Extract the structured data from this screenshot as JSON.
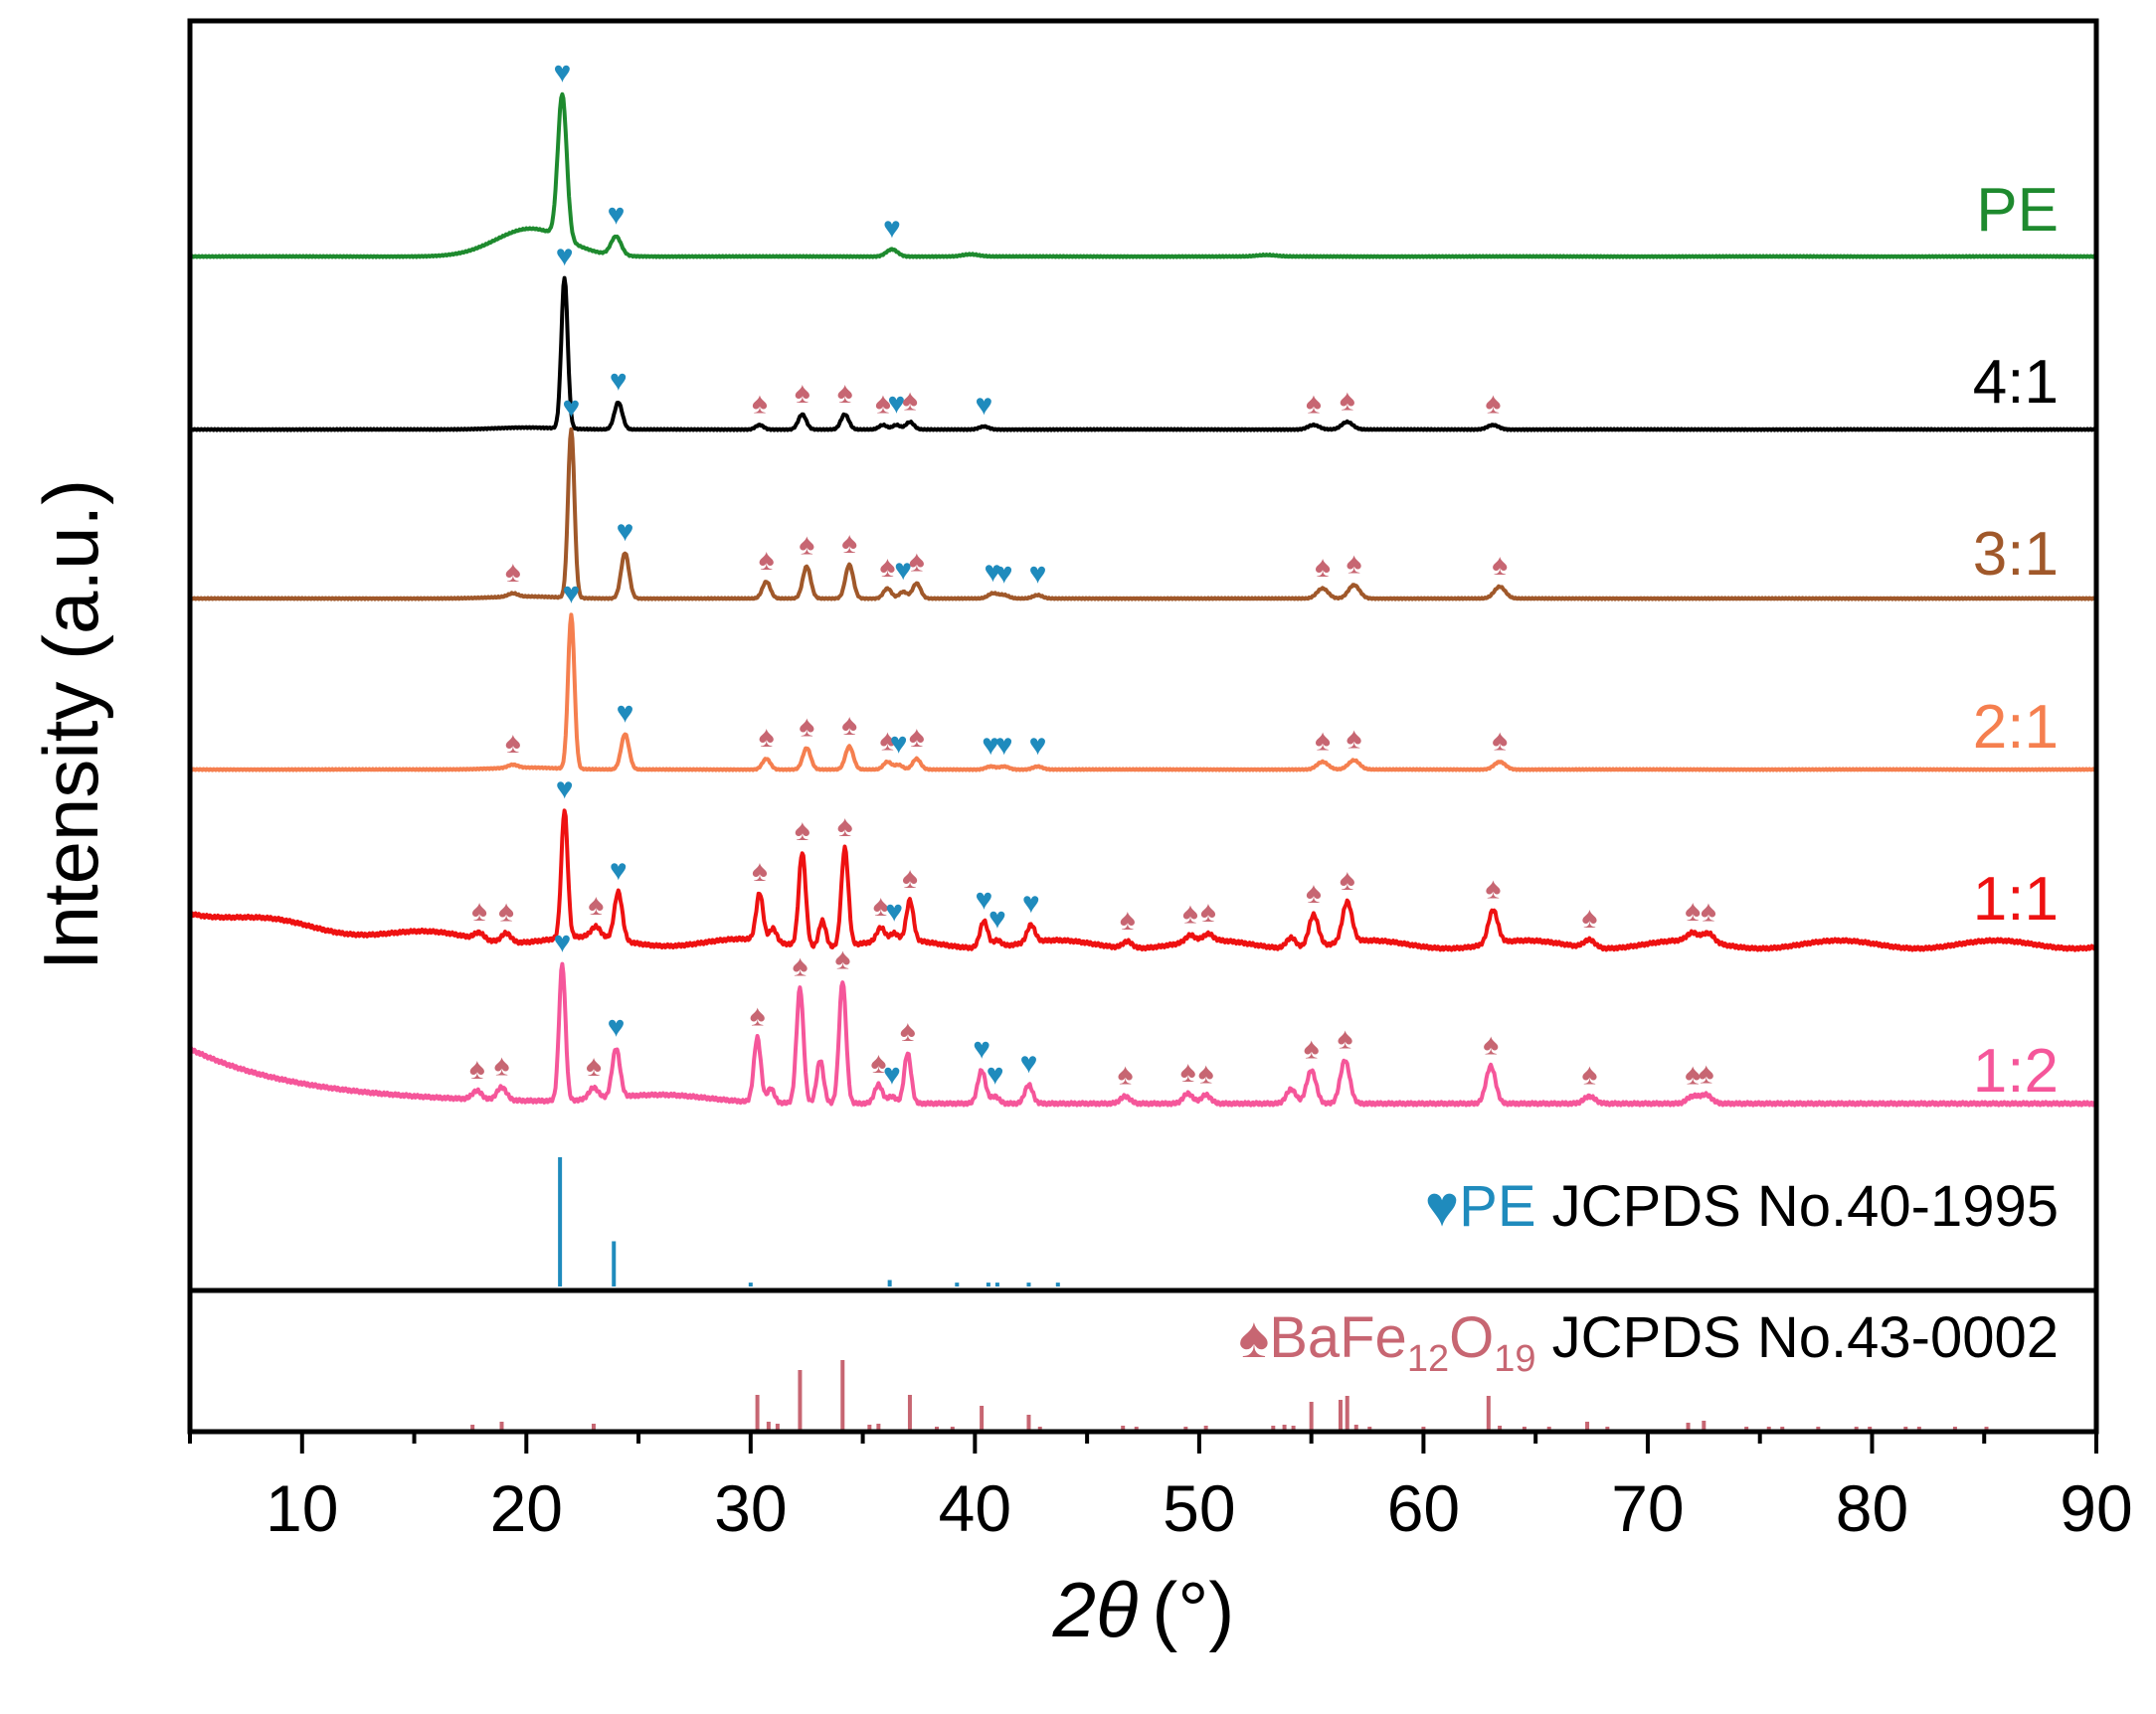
{
  "chart_data": {
    "type": "line",
    "title": "",
    "xlabel_italic": "2θ",
    "xlabel_unit": "(°)",
    "ylabel": "Intensity (a.u.)",
    "xlim": [
      5,
      90
    ],
    "x_ticks": [
      10,
      20,
      30,
      40,
      50,
      60,
      70,
      80,
      90
    ],
    "x_minor_step": 5,
    "grid": false,
    "legend": "inline labels on right side",
    "colors": {
      "PE": "#1e8a2e",
      "4:1": "#000000",
      "3:1": "#a0582a",
      "2:1": "#f57f4f",
      "1:1": "#ee1111",
      "1:2": "#f5569a",
      "pe_ref": "#1f8bbd",
      "bafe_ref": "#c76672"
    },
    "marker_symbols": {
      "PE": "♥",
      "BaFe12O19": "♠"
    },
    "series": [
      {
        "name": "PE",
        "label": "PE",
        "color": "#1e8a2e",
        "peaks": [
          {
            "x": 21.6,
            "h": 1.0,
            "w": 0.28,
            "m": "PE"
          },
          {
            "x": 24.0,
            "h": 0.13,
            "w": 0.32,
            "m": "PE"
          },
          {
            "x": 36.3,
            "h": 0.05,
            "w": 0.35,
            "m": "PE"
          },
          {
            "x": 39.8,
            "h": 0.015,
            "w": 0.5,
            "m": null
          },
          {
            "x": 53.0,
            "h": 0.01,
            "w": 0.6,
            "m": null
          }
        ]
      },
      {
        "name": "4:1",
        "label": "4:1",
        "color": "#000000",
        "peaks": [
          {
            "x": 21.7,
            "h": 1.0,
            "w": 0.2,
            "m": "PE"
          },
          {
            "x": 24.1,
            "h": 0.18,
            "w": 0.25,
            "m": "PE"
          },
          {
            "x": 30.4,
            "h": 0.03,
            "w": 0.25,
            "m": "Ba"
          },
          {
            "x": 32.3,
            "h": 0.1,
            "w": 0.25,
            "m": "Ba"
          },
          {
            "x": 34.2,
            "h": 0.1,
            "w": 0.25,
            "m": "Ba"
          },
          {
            "x": 35.9,
            "h": 0.03,
            "w": 0.25,
            "m": "Ba"
          },
          {
            "x": 36.5,
            "h": 0.03,
            "w": 0.25,
            "m": "PE"
          },
          {
            "x": 37.1,
            "h": 0.05,
            "w": 0.25,
            "m": "Ba"
          },
          {
            "x": 40.4,
            "h": 0.02,
            "w": 0.3,
            "m": "PE"
          },
          {
            "x": 55.1,
            "h": 0.03,
            "w": 0.35,
            "m": "Ba"
          },
          {
            "x": 56.6,
            "h": 0.05,
            "w": 0.35,
            "m": "Ba"
          },
          {
            "x": 63.1,
            "h": 0.03,
            "w": 0.35,
            "m": "Ba"
          }
        ]
      },
      {
        "name": "3:1",
        "label": "3:1",
        "color": "#a0582a",
        "peaks": [
          {
            "x": 19.4,
            "h": 0.02,
            "w": 0.3,
            "m": "Ba"
          },
          {
            "x": 22.0,
            "h": 1.0,
            "w": 0.2,
            "m": "PE"
          },
          {
            "x": 24.4,
            "h": 0.27,
            "w": 0.25,
            "m": "PE"
          },
          {
            "x": 30.7,
            "h": 0.1,
            "w": 0.25,
            "m": "Ba"
          },
          {
            "x": 32.5,
            "h": 0.19,
            "w": 0.25,
            "m": "Ba"
          },
          {
            "x": 34.4,
            "h": 0.2,
            "w": 0.25,
            "m": "Ba"
          },
          {
            "x": 36.1,
            "h": 0.06,
            "w": 0.25,
            "m": "Ba"
          },
          {
            "x": 36.8,
            "h": 0.04,
            "w": 0.25,
            "m": "PE"
          },
          {
            "x": 37.4,
            "h": 0.09,
            "w": 0.25,
            "m": "Ba"
          },
          {
            "x": 40.8,
            "h": 0.03,
            "w": 0.3,
            "m": "PE"
          },
          {
            "x": 41.3,
            "h": 0.02,
            "w": 0.3,
            "m": "PE"
          },
          {
            "x": 42.8,
            "h": 0.02,
            "w": 0.3,
            "m": "PE"
          },
          {
            "x": 55.5,
            "h": 0.06,
            "w": 0.35,
            "m": "Ba"
          },
          {
            "x": 56.9,
            "h": 0.08,
            "w": 0.35,
            "m": "Ba"
          },
          {
            "x": 63.4,
            "h": 0.07,
            "w": 0.35,
            "m": "Ba"
          }
        ]
      },
      {
        "name": "2:1",
        "label": "2:1",
        "color": "#f57f4f",
        "peaks": [
          {
            "x": 19.4,
            "h": 0.02,
            "w": 0.3,
            "m": "Ba"
          },
          {
            "x": 22.0,
            "h": 1.0,
            "w": 0.2,
            "m": "PE"
          },
          {
            "x": 24.4,
            "h": 0.23,
            "w": 0.25,
            "m": "PE"
          },
          {
            "x": 30.7,
            "h": 0.07,
            "w": 0.25,
            "m": "Ba"
          },
          {
            "x": 32.5,
            "h": 0.14,
            "w": 0.25,
            "m": "Ba"
          },
          {
            "x": 34.4,
            "h": 0.15,
            "w": 0.25,
            "m": "Ba"
          },
          {
            "x": 36.1,
            "h": 0.05,
            "w": 0.25,
            "m": "Ba"
          },
          {
            "x": 36.6,
            "h": 0.03,
            "w": 0.25,
            "m": "PE"
          },
          {
            "x": 37.4,
            "h": 0.07,
            "w": 0.25,
            "m": "Ba"
          },
          {
            "x": 40.7,
            "h": 0.02,
            "w": 0.3,
            "m": "PE"
          },
          {
            "x": 41.3,
            "h": 0.02,
            "w": 0.3,
            "m": "PE"
          },
          {
            "x": 42.8,
            "h": 0.02,
            "w": 0.3,
            "m": "PE"
          },
          {
            "x": 55.5,
            "h": 0.05,
            "w": 0.35,
            "m": "Ba"
          },
          {
            "x": 56.9,
            "h": 0.06,
            "w": 0.35,
            "m": "Ba"
          },
          {
            "x": 63.4,
            "h": 0.05,
            "w": 0.35,
            "m": "Ba"
          }
        ]
      },
      {
        "name": "1:1",
        "label": "1:1",
        "color": "#ee1111",
        "peaks": [
          {
            "x": 17.9,
            "h": 0.05,
            "w": 0.3,
            "m": "Ba"
          },
          {
            "x": 19.1,
            "h": 0.07,
            "w": 0.3,
            "m": "Ba"
          },
          {
            "x": 21.7,
            "h": 0.95,
            "w": 0.2,
            "m": "PE"
          },
          {
            "x": 23.1,
            "h": 0.08,
            "w": 0.3,
            "m": "Ba"
          },
          {
            "x": 24.1,
            "h": 0.36,
            "w": 0.25,
            "m": "PE"
          },
          {
            "x": 30.4,
            "h": 0.35,
            "w": 0.22,
            "m": "Ba"
          },
          {
            "x": 31.0,
            "h": 0.1,
            "w": 0.22,
            "m": null
          },
          {
            "x": 32.3,
            "h": 0.7,
            "w": 0.22,
            "m": "Ba"
          },
          {
            "x": 33.2,
            "h": 0.2,
            "w": 0.22,
            "m": null
          },
          {
            "x": 34.2,
            "h": 0.73,
            "w": 0.22,
            "m": "Ba"
          },
          {
            "x": 35.8,
            "h": 0.1,
            "w": 0.25,
            "m": "Ba"
          },
          {
            "x": 36.4,
            "h": 0.05,
            "w": 0.25,
            "m": "PE"
          },
          {
            "x": 37.1,
            "h": 0.3,
            "w": 0.22,
            "m": "Ba"
          },
          {
            "x": 40.4,
            "h": 0.2,
            "w": 0.25,
            "m": "PE"
          },
          {
            "x": 41.0,
            "h": 0.05,
            "w": 0.25,
            "m": "PE"
          },
          {
            "x": 42.5,
            "h": 0.13,
            "w": 0.25,
            "m": "PE"
          },
          {
            "x": 46.8,
            "h": 0.05,
            "w": 0.3,
            "m": "Ba"
          },
          {
            "x": 49.6,
            "h": 0.05,
            "w": 0.3,
            "m": "Ba"
          },
          {
            "x": 50.4,
            "h": 0.05,
            "w": 0.3,
            "m": "Ba"
          },
          {
            "x": 54.1,
            "h": 0.08,
            "w": 0.3,
            "m": null
          },
          {
            "x": 55.1,
            "h": 0.24,
            "w": 0.3,
            "m": "Ba"
          },
          {
            "x": 56.6,
            "h": 0.3,
            "w": 0.3,
            "m": "Ba"
          },
          {
            "x": 63.1,
            "h": 0.25,
            "w": 0.3,
            "m": "Ba"
          },
          {
            "x": 67.4,
            "h": 0.06,
            "w": 0.35,
            "m": "Ba"
          },
          {
            "x": 72.0,
            "h": 0.06,
            "w": 0.35,
            "m": "Ba"
          },
          {
            "x": 72.7,
            "h": 0.07,
            "w": 0.35,
            "m": "Ba"
          }
        ]
      },
      {
        "name": "1:2",
        "label": "1:2",
        "color": "#f5569a",
        "peaks": [
          {
            "x": 17.8,
            "h": 0.06,
            "w": 0.3,
            "m": "Ba"
          },
          {
            "x": 18.9,
            "h": 0.09,
            "w": 0.3,
            "m": "Ba"
          },
          {
            "x": 21.6,
            "h": 0.95,
            "w": 0.2,
            "m": "PE"
          },
          {
            "x": 23.0,
            "h": 0.08,
            "w": 0.3,
            "m": "Ba"
          },
          {
            "x": 24.0,
            "h": 0.34,
            "w": 0.25,
            "m": "PE"
          },
          {
            "x": 30.3,
            "h": 0.45,
            "w": 0.22,
            "m": "Ba"
          },
          {
            "x": 30.9,
            "h": 0.1,
            "w": 0.22,
            "m": null
          },
          {
            "x": 32.2,
            "h": 0.8,
            "w": 0.22,
            "m": "Ba"
          },
          {
            "x": 33.1,
            "h": 0.3,
            "w": 0.22,
            "m": null
          },
          {
            "x": 34.1,
            "h": 0.85,
            "w": 0.22,
            "m": "Ba"
          },
          {
            "x": 35.7,
            "h": 0.13,
            "w": 0.25,
            "m": "Ba"
          },
          {
            "x": 36.3,
            "h": 0.05,
            "w": 0.25,
            "m": "PE"
          },
          {
            "x": 37.0,
            "h": 0.35,
            "w": 0.22,
            "m": "Ba"
          },
          {
            "x": 40.3,
            "h": 0.23,
            "w": 0.25,
            "m": "PE"
          },
          {
            "x": 40.9,
            "h": 0.05,
            "w": 0.25,
            "m": "PE"
          },
          {
            "x": 42.4,
            "h": 0.13,
            "w": 0.25,
            "m": "PE"
          },
          {
            "x": 46.7,
            "h": 0.05,
            "w": 0.3,
            "m": "Ba"
          },
          {
            "x": 49.5,
            "h": 0.07,
            "w": 0.3,
            "m": "Ba"
          },
          {
            "x": 50.3,
            "h": 0.06,
            "w": 0.3,
            "m": "Ba"
          },
          {
            "x": 54.1,
            "h": 0.1,
            "w": 0.3,
            "m": null
          },
          {
            "x": 55.0,
            "h": 0.23,
            "w": 0.3,
            "m": "Ba"
          },
          {
            "x": 56.5,
            "h": 0.3,
            "w": 0.3,
            "m": "Ba"
          },
          {
            "x": 63.0,
            "h": 0.26,
            "w": 0.3,
            "m": "Ba"
          },
          {
            "x": 67.4,
            "h": 0.05,
            "w": 0.35,
            "m": "Ba"
          },
          {
            "x": 72.0,
            "h": 0.05,
            "w": 0.35,
            "m": "Ba"
          },
          {
            "x": 72.6,
            "h": 0.06,
            "w": 0.35,
            "m": "Ba"
          }
        ]
      }
    ],
    "reference_PE": {
      "label_symbol": "♥",
      "label_name": "PE",
      "label_card": " JCPDS No.40-1995",
      "lines": [
        {
          "x": 21.5,
          "h": 100
        },
        {
          "x": 23.9,
          "h": 35
        },
        {
          "x": 30.0,
          "h": 3
        },
        {
          "x": 36.2,
          "h": 5
        },
        {
          "x": 39.2,
          "h": 3
        },
        {
          "x": 40.6,
          "h": 3
        },
        {
          "x": 41.0,
          "h": 3
        },
        {
          "x": 42.4,
          "h": 3
        },
        {
          "x": 43.7,
          "h": 3
        }
      ]
    },
    "reference_BaFe12O19": {
      "label_symbol": "♠",
      "label_base": "BaFe",
      "label_sub1": "12",
      "label_o": "O",
      "label_sub2": "19",
      "label_card": " JCPDS No.43-0002",
      "lines": [
        {
          "x": 17.6,
          "h": 5
        },
        {
          "x": 18.9,
          "h": 8
        },
        {
          "x": 23.0,
          "h": 6
        },
        {
          "x": 30.3,
          "h": 35
        },
        {
          "x": 30.8,
          "h": 8
        },
        {
          "x": 31.2,
          "h": 6
        },
        {
          "x": 32.2,
          "h": 60
        },
        {
          "x": 34.1,
          "h": 70
        },
        {
          "x": 35.3,
          "h": 5
        },
        {
          "x": 35.7,
          "h": 6
        },
        {
          "x": 37.1,
          "h": 35
        },
        {
          "x": 38.3,
          "h": 3
        },
        {
          "x": 39.0,
          "h": 3
        },
        {
          "x": 40.3,
          "h": 24
        },
        {
          "x": 42.4,
          "h": 15
        },
        {
          "x": 42.9,
          "h": 3
        },
        {
          "x": 46.6,
          "h": 4
        },
        {
          "x": 47.2,
          "h": 3
        },
        {
          "x": 49.4,
          "h": 3
        },
        {
          "x": 50.3,
          "h": 4
        },
        {
          "x": 53.3,
          "h": 4
        },
        {
          "x": 53.8,
          "h": 5
        },
        {
          "x": 54.2,
          "h": 4
        },
        {
          "x": 55.0,
          "h": 28
        },
        {
          "x": 56.3,
          "h": 30
        },
        {
          "x": 56.6,
          "h": 34
        },
        {
          "x": 57.0,
          "h": 5
        },
        {
          "x": 57.6,
          "h": 3
        },
        {
          "x": 60.0,
          "h": 3
        },
        {
          "x": 62.9,
          "h": 34
        },
        {
          "x": 63.4,
          "h": 4
        },
        {
          "x": 64.5,
          "h": 3
        },
        {
          "x": 65.6,
          "h": 3
        },
        {
          "x": 67.3,
          "h": 8
        },
        {
          "x": 68.2,
          "h": 3
        },
        {
          "x": 71.8,
          "h": 7
        },
        {
          "x": 72.5,
          "h": 9
        },
        {
          "x": 74.4,
          "h": 3
        },
        {
          "x": 75.4,
          "h": 3
        },
        {
          "x": 76.0,
          "h": 3
        },
        {
          "x": 77.6,
          "h": 3
        },
        {
          "x": 79.3,
          "h": 3
        },
        {
          "x": 79.9,
          "h": 3
        },
        {
          "x": 81.5,
          "h": 3
        },
        {
          "x": 82.1,
          "h": 3
        },
        {
          "x": 83.7,
          "h": 3
        },
        {
          "x": 85.1,
          "h": 3
        }
      ]
    }
  }
}
